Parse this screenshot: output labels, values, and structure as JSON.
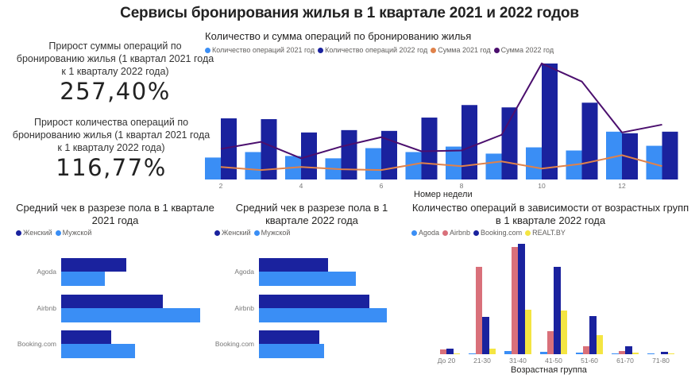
{
  "title": "Сервисы бронирования жилья в 1 квартале 2021 и 2022 годов",
  "colors": {
    "count_2021": "#3a8ef5",
    "count_2022": "#1a229e",
    "sum_2021": "#e0824a",
    "sum_2022": "#4b0f6e",
    "female": "#1a229e",
    "male": "#3a8ef5",
    "agoda": "#3a8ef5",
    "airbnb": "#d9707a",
    "booking": "#1a229e",
    "realt": "#f4e542"
  },
  "kpis": [
    {
      "label": "Прирост суммы операций по бронированию жилья (1 квартал 2021 года к 1 кварталу 2022 года)",
      "value": "257,40%"
    },
    {
      "label": "Прирост количества операций по бронированию жилья (1 квартал 2021 года к 1 кварталу 2022 года)",
      "value": "116,77%"
    }
  ],
  "main_chart": {
    "title": "Количество и сумма операций по бронированию жилья",
    "legend": [
      "Количество операций 2021 год",
      "Количество операций 2022 год",
      "Сумма 2021 год",
      "Сумма 2022 год"
    ],
    "xlabel": "Номер недели",
    "tick_labels": [
      "2",
      "4",
      "6",
      "8",
      "10",
      "12"
    ]
  },
  "gender_2021": {
    "title": "Средний чек в разрезе пола в 1 квартале 2021 года",
    "legend": [
      "Женский",
      "Мужской"
    ],
    "categories": [
      "Agoda",
      "Airbnb",
      "Booking.com"
    ]
  },
  "gender_2022": {
    "title": "Средний чек в разрезе пола в 1 квартале 2022 года",
    "legend": [
      "Женский",
      "Мужской"
    ],
    "categories": [
      "Agoda",
      "Airbnb",
      "Booking.com"
    ]
  },
  "age_chart": {
    "title": "Количество операций в зависимости от возрастных групп в 1 квартале 2022 года",
    "legend": [
      "Agoda",
      "Airbnb",
      "Booking.com",
      "REALT.BY"
    ],
    "xlabel": "Возрастная группа",
    "categories": [
      "До 20",
      "21-30",
      "31-40",
      "41-50",
      "51-60",
      "61-70",
      "71-80"
    ]
  },
  "chart_data": [
    {
      "type": "bar",
      "title": "Количество и сумма операций по бронированию жилья",
      "xlabel": "Номер недели",
      "ylabel": "",
      "x": [
        2,
        3,
        4,
        5,
        6,
        7,
        8,
        9,
        10,
        11,
        12,
        13
      ],
      "series": [
        {
          "name": "Количество операций 2021 год",
          "kind": "bar",
          "values": [
            28,
            35,
            30,
            27,
            40,
            35,
            42,
            33,
            41,
            37,
            61,
            43
          ]
        },
        {
          "name": "Количество операций 2022 год",
          "kind": "bar",
          "values": [
            78,
            77,
            60,
            63,
            62,
            79,
            95,
            92,
            148,
            98,
            59,
            61
          ]
        },
        {
          "name": "Сумма 2021 год",
          "kind": "line",
          "values": [
            16,
            12,
            16,
            13,
            12,
            21,
            17,
            23,
            14,
            20,
            31,
            17
          ]
        },
        {
          "name": "Сумма 2022 год",
          "kind": "line",
          "values": [
            39,
            48,
            27,
            42,
            54,
            36,
            37,
            57,
            148,
            125,
            60,
            70
          ]
        }
      ],
      "ylim": [
        0,
        150
      ],
      "note": "Values are relative (no y-axis shown); estimated from bar/line pixel heights"
    },
    {
      "type": "bar",
      "orientation": "horizontal",
      "title": "Средний чек в разрезе пола в 1 квартале 2021 года",
      "categories": [
        "Agoda",
        "Airbnb",
        "Booking.com"
      ],
      "series": [
        {
          "name": "Женский",
          "values": [
            82,
            128,
            63
          ]
        },
        {
          "name": "Мужской",
          "values": [
            55,
            175,
            93
          ]
        }
      ],
      "note": "Relative lengths (no axis shown)"
    },
    {
      "type": "bar",
      "orientation": "horizontal",
      "title": "Средний чек в разрезе пола в 1 квартале 2022 года",
      "categories": [
        "Agoda",
        "Airbnb",
        "Booking.com"
      ],
      "series": [
        {
          "name": "Женский",
          "values": [
            87,
            139,
            76
          ]
        },
        {
          "name": "Мужской",
          "values": [
            122,
            161,
            82
          ]
        }
      ],
      "note": "Relative lengths (no axis shown)"
    },
    {
      "type": "bar",
      "title": "Количество операций в зависимости от возрастных групп в 1 квартале 2022 года",
      "xlabel": "Возрастная группа",
      "categories": [
        "До 20",
        "21-30",
        "31-40",
        "41-50",
        "51-60",
        "61-70",
        "71-80"
      ],
      "series": [
        {
          "name": "Agoda",
          "values": [
            0,
            1,
            4,
            3,
            2,
            1,
            1
          ]
        },
        {
          "name": "Airbnb",
          "values": [
            6,
            110,
            135,
            29,
            10,
            4,
            0
          ]
        },
        {
          "name": "Booking.com",
          "values": [
            7,
            47,
            139,
            110,
            48,
            10,
            3
          ]
        },
        {
          "name": "REALT.BY",
          "values": [
            1,
            7,
            56,
            55,
            24,
            2,
            1
          ]
        }
      ],
      "note": "Relative heights (no y-axis shown)"
    }
  ]
}
